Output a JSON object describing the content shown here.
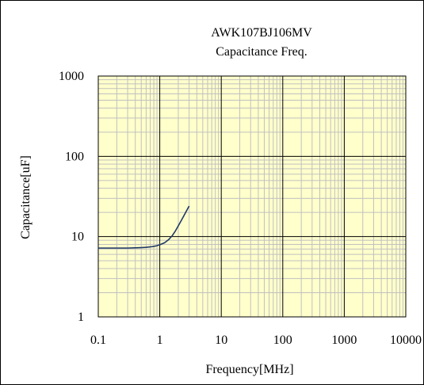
{
  "chart_data": {
    "type": "line",
    "title": "AWK107BJ106MV",
    "subtitle": "Capacitance Freq.",
    "xlabel": "Frequency[MHz]",
    "ylabel": "Capacitance[uF]",
    "x_scale": "log",
    "y_scale": "log",
    "xlim": [
      0.1,
      10000
    ],
    "ylim": [
      1,
      1000
    ],
    "x_ticks": [
      "0.1",
      "1",
      "10",
      "100",
      "1000",
      "10000"
    ],
    "y_ticks": [
      "1",
      "10",
      "100",
      "1000"
    ],
    "grid": true,
    "legend": "none",
    "series": [
      {
        "color": "#1f3864",
        "x": [
          0.1,
          0.15,
          0.2,
          0.3,
          0.4,
          0.5,
          0.6,
          0.7,
          0.8,
          0.9,
          1.0,
          1.2,
          1.4,
          1.6,
          1.8,
          2.0,
          2.2,
          2.4,
          2.6,
          2.8,
          3.0
        ],
        "y": [
          7.2,
          7.2,
          7.2,
          7.2,
          7.25,
          7.3,
          7.35,
          7.45,
          7.55,
          7.7,
          7.9,
          8.4,
          9.2,
          10.3,
          11.8,
          13.6,
          15.5,
          17.5,
          19.6,
          21.8,
          24.0
        ]
      }
    ],
    "colors": {
      "plot_background": "#ffffcc",
      "major_grid": "#000000",
      "minor_grid": "#c0c0c0",
      "line": "#1f3864"
    }
  }
}
